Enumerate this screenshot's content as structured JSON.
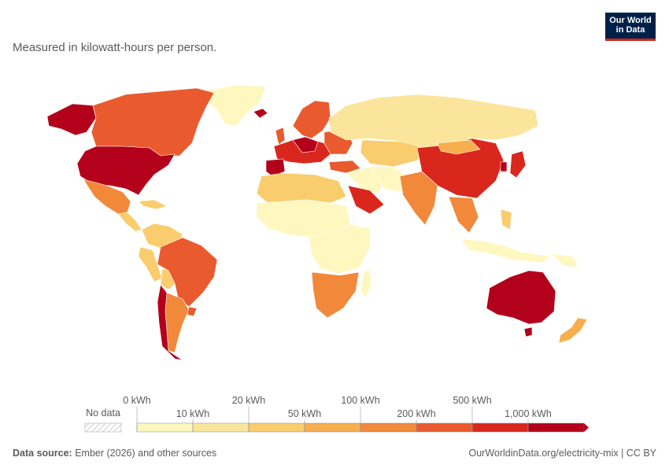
{
  "subtitle": "Measured in kilowatt-hours per person.",
  "logo": {
    "line1": "Our World",
    "line2": "in Data"
  },
  "legend": {
    "no_data": "No data",
    "upper_labels": [
      "0 kWh",
      "20 kWh",
      "100 kWh",
      "500 kWh"
    ],
    "lower_labels": [
      "10 kWh",
      "50 kWh",
      "200 kWh",
      "1,000 kWh"
    ],
    "colors": [
      "#fef8c0",
      "#fbe59c",
      "#f9cd6d",
      "#f6ae4e",
      "#f1883a",
      "#e95a2e",
      "#d9271d",
      "#b3001b"
    ]
  },
  "footer": {
    "source_label": "Data source:",
    "source_text": "Ember (2026) and other sources",
    "link": "OurWorldinData.org/electricity-mix | CC BY"
  }
}
